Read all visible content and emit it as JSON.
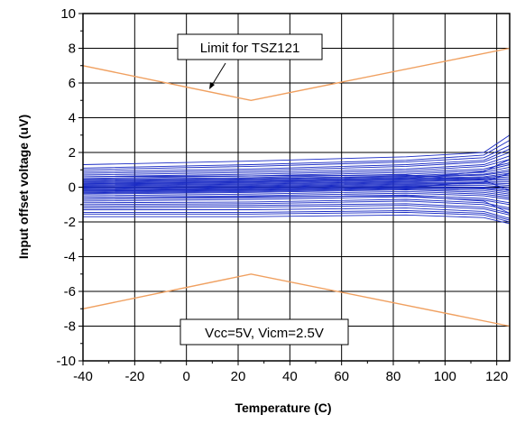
{
  "chart_data": {
    "type": "line",
    "title": "",
    "xlabel": "Temperature (C)",
    "ylabel": "Input offset voltage (uV)",
    "xlim": [
      -40,
      125
    ],
    "ylim": [
      -10,
      10
    ],
    "x_ticks": [
      -40,
      -20,
      0,
      20,
      40,
      60,
      80,
      100,
      120
    ],
    "y_ticks": [
      -10,
      -8,
      -6,
      -4,
      -2,
      0,
      2,
      4,
      6,
      8,
      10
    ],
    "grid": true,
    "annotations": {
      "limit_label": "Limit for TSZ121",
      "condition_label": "Vcc=5V, Vicm=2.5V"
    },
    "limit_series": [
      {
        "name": "Limit for TSZ121 (upper)",
        "color": "#f0a060",
        "x": [
          -40,
          25,
          125
        ],
        "y": [
          7,
          5,
          8
        ]
      },
      {
        "name": "Limit for TSZ121 (lower)",
        "color": "#f0a060",
        "x": [
          -40,
          25,
          125
        ],
        "y": [
          -7,
          -5,
          -8
        ]
      }
    ],
    "device_series": {
      "color": "#1a2bc4",
      "x": [
        -40,
        25,
        85,
        115,
        125
      ],
      "y": [
        [
          1.3,
          1.5,
          1.75,
          2.0,
          3.0
        ],
        [
          1.1,
          1.3,
          1.55,
          1.85,
          2.7
        ],
        [
          1.0,
          1.2,
          1.45,
          1.7,
          2.4
        ],
        [
          0.9,
          1.05,
          1.3,
          1.55,
          2.2
        ],
        [
          0.8,
          0.95,
          1.2,
          1.45,
          2.0
        ],
        [
          0.7,
          0.85,
          1.05,
          1.3,
          1.8
        ],
        [
          0.6,
          0.75,
          0.95,
          1.2,
          1.6
        ],
        [
          0.5,
          0.65,
          0.85,
          1.05,
          1.4
        ],
        [
          0.45,
          0.55,
          0.75,
          0.95,
          1.3
        ],
        [
          0.4,
          0.5,
          0.65,
          0.85,
          1.15
        ],
        [
          0.35,
          0.45,
          0.6,
          0.75,
          1.0
        ],
        [
          0.3,
          0.4,
          0.55,
          0.7,
          0.9
        ],
        [
          0.25,
          0.35,
          0.5,
          0.6,
          0.8
        ],
        [
          0.2,
          0.3,
          0.45,
          0.55,
          0.7
        ],
        [
          0.15,
          0.25,
          0.4,
          0.5,
          0.6
        ],
        [
          0.1,
          0.2,
          0.35,
          0.45,
          0.5
        ],
        [
          0.05,
          0.15,
          0.3,
          0.4,
          0.4
        ],
        [
          0.0,
          0.1,
          0.25,
          0.3,
          0.3
        ],
        [
          -0.05,
          0.05,
          0.2,
          0.25,
          0.2
        ],
        [
          -0.1,
          0.0,
          0.15,
          0.2,
          0.1
        ],
        [
          -0.15,
          -0.05,
          0.1,
          0.1,
          0.0
        ],
        [
          -0.2,
          -0.1,
          0.05,
          0.0,
          -0.1
        ],
        [
          -0.25,
          -0.15,
          0.0,
          -0.05,
          -0.2
        ],
        [
          -0.3,
          -0.2,
          -0.05,
          -0.1,
          -0.3
        ],
        [
          -0.35,
          -0.25,
          -0.1,
          -0.2,
          -0.4
        ],
        [
          -0.4,
          -0.3,
          -0.15,
          -0.3,
          -0.5
        ],
        [
          -0.5,
          -0.4,
          -0.25,
          -0.4,
          -0.6
        ],
        [
          -0.6,
          -0.5,
          -0.35,
          -0.5,
          -0.7
        ],
        [
          -0.7,
          -0.6,
          -0.45,
          -0.65,
          -0.9
        ],
        [
          -0.8,
          -0.7,
          -0.55,
          -0.75,
          -1.0
        ],
        [
          -0.9,
          -0.85,
          -0.7,
          -0.9,
          -1.2
        ],
        [
          -1.0,
          -0.95,
          -0.8,
          -1.0,
          -1.3
        ],
        [
          -1.1,
          -1.05,
          -0.95,
          -1.15,
          -1.5
        ],
        [
          -1.2,
          -1.15,
          -1.05,
          -1.25,
          -1.6
        ],
        [
          -1.3,
          -1.3,
          -1.2,
          -1.4,
          -1.8
        ],
        [
          -1.45,
          -1.45,
          -1.35,
          -1.5,
          -1.9
        ],
        [
          -1.55,
          -1.55,
          -1.45,
          -1.6,
          -2.0
        ],
        [
          -1.7,
          -1.7,
          -1.6,
          -1.75,
          -2.1
        ],
        [
          0.2,
          0.3,
          0.5,
          0.9,
          1.6
        ],
        [
          -0.2,
          -0.15,
          0.0,
          0.3,
          0.8
        ],
        [
          0.6,
          0.65,
          0.7,
          0.4,
          -0.2
        ],
        [
          -0.6,
          -0.55,
          -0.5,
          -0.8,
          -1.5
        ]
      ]
    }
  }
}
